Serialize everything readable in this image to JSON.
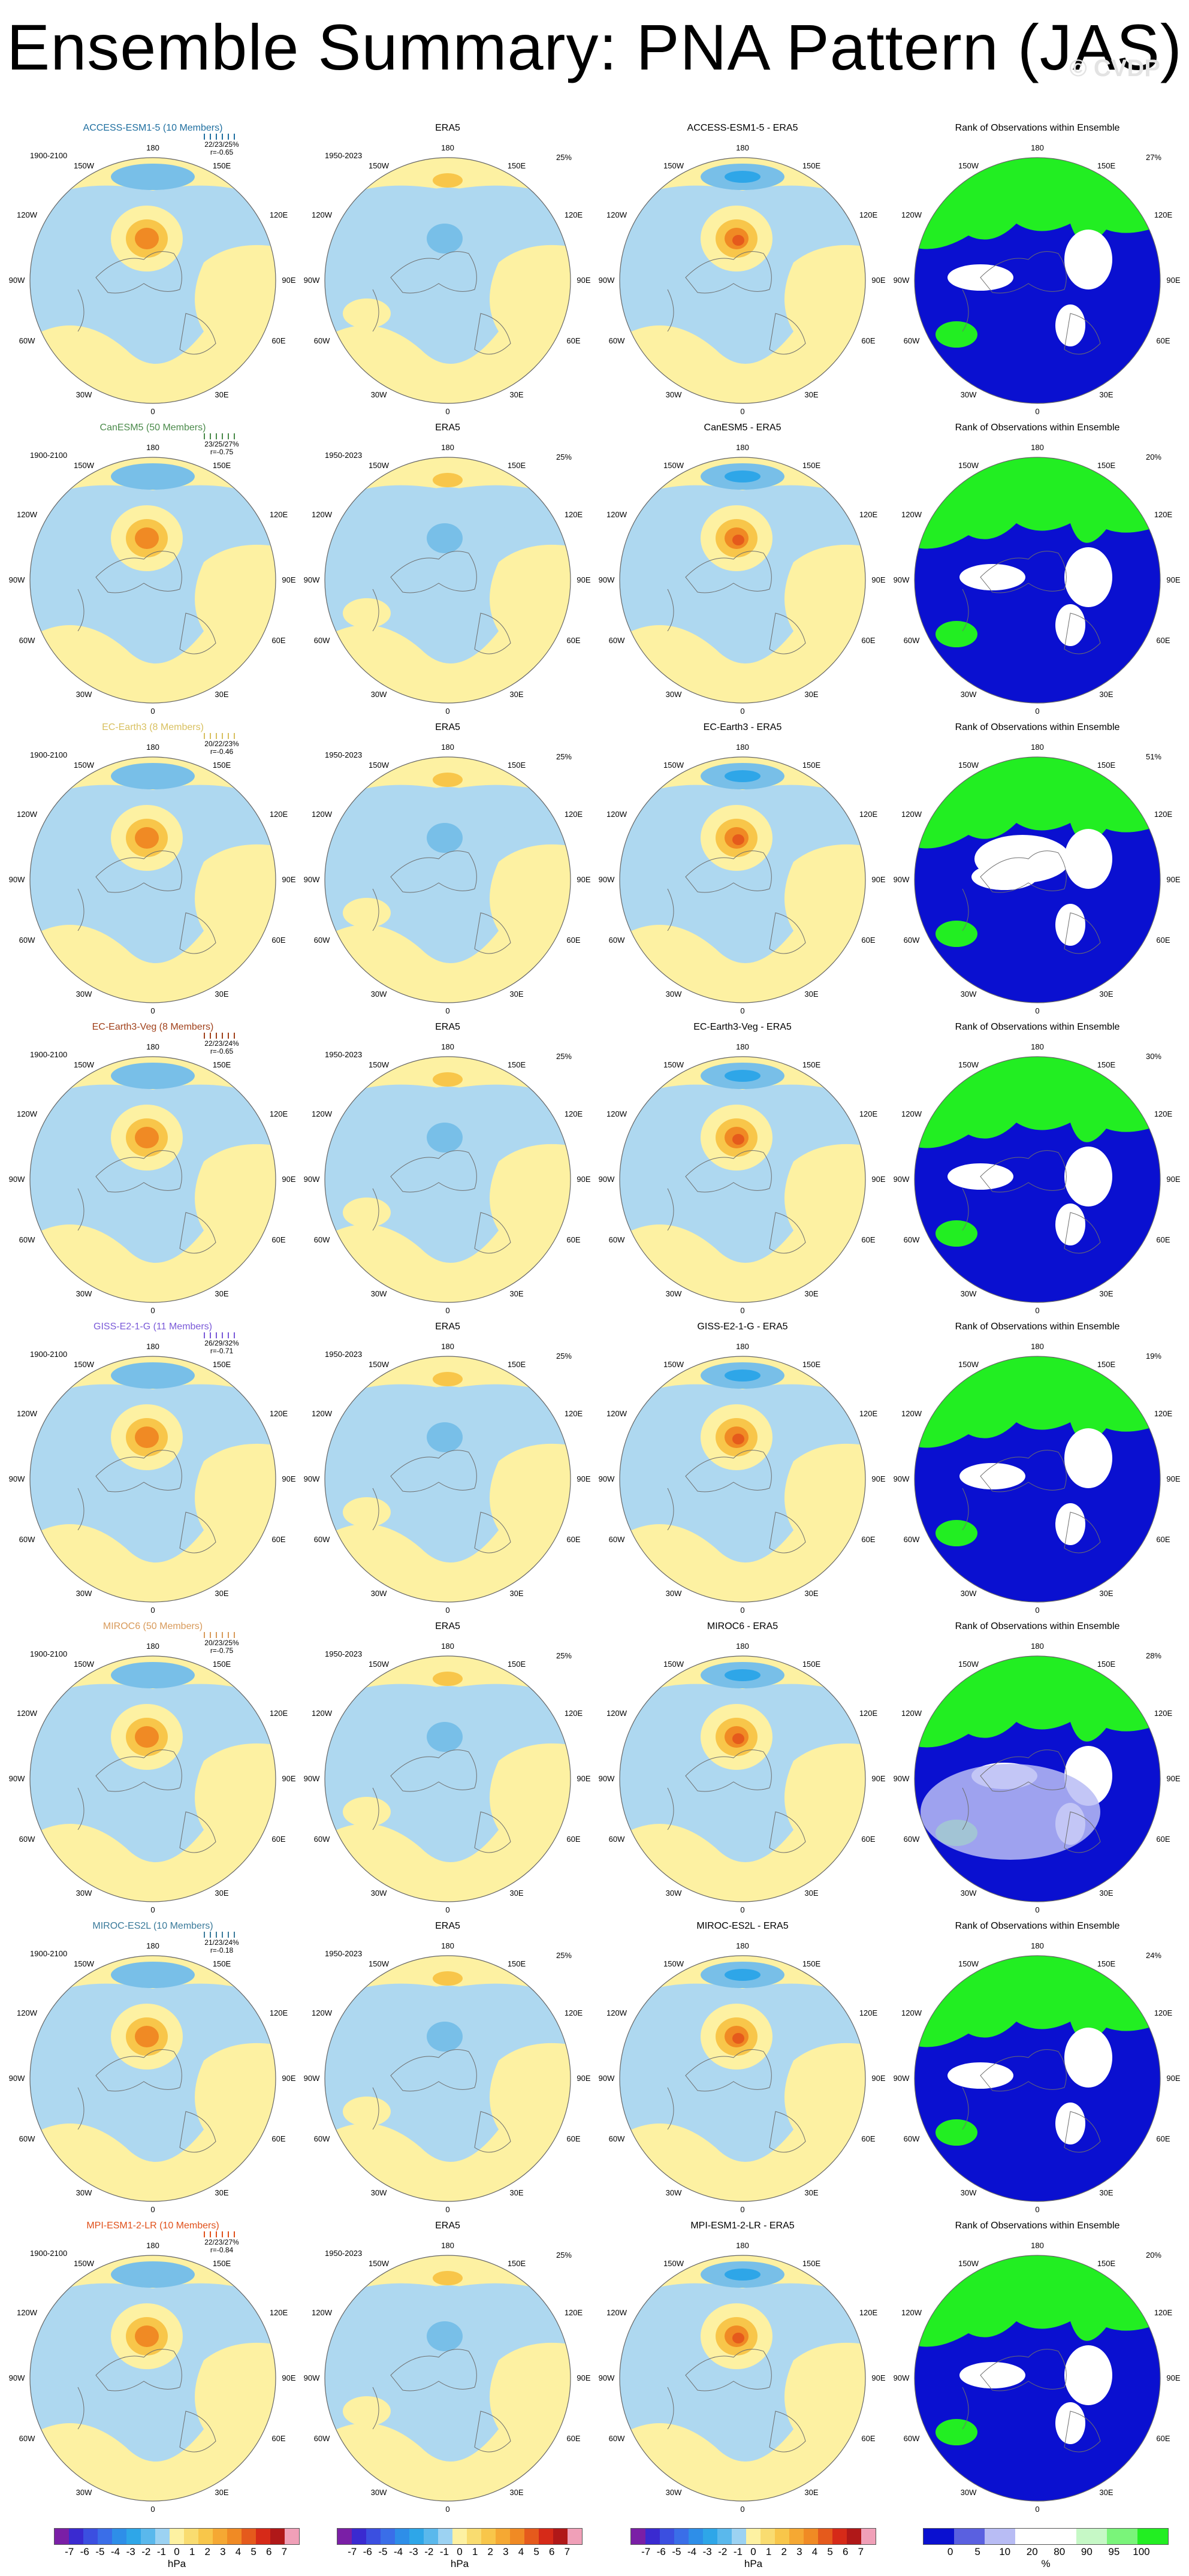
{
  "title": "Ensemble Summary: PNA Pattern (JAS)",
  "watermark": "© CVDP",
  "colors": {
    "neg_light": "#aed8f0",
    "neg_mid": "#78bfe8",
    "neg_dark": "#2ea6e8",
    "pos_light": "#fdf1a2",
    "pos_mid": "#f8c64a",
    "pos_dark": "#f08a24",
    "pos_darker": "#e55a1c",
    "rank_blue": "#0a10d0",
    "rank_light": "#b8bcf4",
    "rank_green": "#22ee22",
    "rank_lightgreen": "#c6f8c6",
    "land": "#6e6e6e"
  },
  "map_labels": {
    "top": "180",
    "bottom": "0",
    "left_mid": "90W",
    "right_mid": "90E",
    "ul": "150W",
    "ur": "150E",
    "lu": "120W",
    "ru": "120E",
    "ll": "60W",
    "rl": "60E",
    "bl": "30W",
    "br": "30E"
  },
  "col_titles": {
    "era5": "ERA5",
    "rank": "Rank of Observations within Ensemble"
  },
  "periods": {
    "model": "1900-2100",
    "obs": "1950-2023"
  },
  "era5_pct": "25%",
  "rows": [
    {
      "model": "ACCESS-ESM1-5",
      "label": "ACCESS-ESM1-5 (10 Members)",
      "label_color": "#1f6fa0",
      "stats1": "22/23/25%",
      "stats2": "r=-0.65",
      "diff_title": "ACCESS-ESM1-5 - ERA5",
      "rank_pct": "27%"
    },
    {
      "model": "CanESM5",
      "label": "CanESM5 (50 Members)",
      "label_color": "#4a8a4a",
      "stats1": "23/25/27%",
      "stats2": "r=-0.75",
      "diff_title": "CanESM5 - ERA5",
      "rank_pct": "20%"
    },
    {
      "model": "EC-Earth3",
      "label": "EC-Earth3 (8 Members)",
      "label_color": "#d8c060",
      "stats1": "20/22/23%",
      "stats2": "r=-0.46",
      "diff_title": "EC-Earth3 - ERA5",
      "rank_pct": "51%"
    },
    {
      "model": "EC-Earth3-Veg",
      "label": "EC-Earth3-Veg (8 Members)",
      "label_color": "#a0401a",
      "stats1": "22/23/24%",
      "stats2": "r=-0.65",
      "diff_title": "EC-Earth3-Veg - ERA5",
      "rank_pct": "30%"
    },
    {
      "model": "GISS-E2-1-G",
      "label": "GISS-E2-1-G (11 Members)",
      "label_color": "#7a5ad8",
      "stats1": "26/29/32%",
      "stats2": "r=-0.71",
      "diff_title": "GISS-E2-1-G - ERA5",
      "rank_pct": "19%"
    },
    {
      "model": "MIROC6",
      "label": "MIROC6 (50 Members)",
      "label_color": "#d89a5a",
      "stats1": "20/23/25%",
      "stats2": "r=-0.75",
      "diff_title": "MIROC6 - ERA5",
      "rank_pct": "28%"
    },
    {
      "model": "MIROC-ES2L",
      "label": "MIROC-ES2L (10 Members)",
      "label_color": "#3a7a9a",
      "stats1": "21/23/24%",
      "stats2": "r=-0.18",
      "diff_title": "MIROC-ES2L - ERA5",
      "rank_pct": "24%"
    },
    {
      "model": "MPI-ESM1-2-LR",
      "label": "MPI-ESM1-2-LR (10 Members)",
      "label_color": "#e0501a",
      "stats1": "22/23/27%",
      "stats2": "r=-0.84",
      "diff_title": "MPI-ESM1-2-LR - ERA5",
      "rank_pct": "20%"
    }
  ],
  "colorbars": {
    "hpa_ticks": [
      "-7",
      "-6",
      "-5",
      "-4",
      "-3",
      "-2",
      "-1",
      "0",
      "1",
      "2",
      "3",
      "4",
      "5",
      "6",
      "7"
    ],
    "hpa_unit": "hPa",
    "hpa_colors": [
      "#7a1fa6",
      "#3a2ad0",
      "#3b4fe0",
      "#3a6ee8",
      "#2e8ee8",
      "#2ea6e8",
      "#5ab8ec",
      "#9cd2f2",
      "#fdf1a2",
      "#f9dc70",
      "#f8c64a",
      "#f5a833",
      "#f08a24",
      "#e55a1c",
      "#d62a18",
      "#b01818",
      "#f0a0b8"
    ],
    "pct_ticks": [
      "0",
      "5",
      "10",
      "20",
      "80",
      "90",
      "95",
      "100"
    ],
    "pct_unit": "%",
    "pct_colors": [
      "#0a10d0",
      "#5a60e0",
      "#b8bcf4",
      "#ffffff",
      "#ffffff",
      "#c6f8c6",
      "#7af47a",
      "#22ee22"
    ]
  }
}
